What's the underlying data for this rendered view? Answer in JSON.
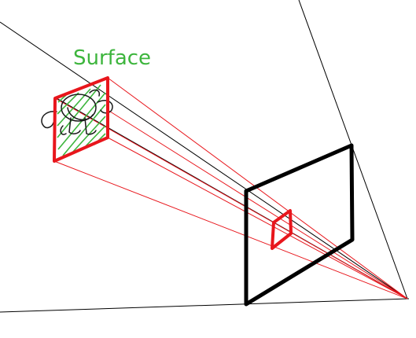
{
  "diagram": {
    "type": "projection-diagram",
    "surface_label": "Surface",
    "colors": {
      "label": "#3db53d",
      "hatch": "#3db53d",
      "surface_frame": "#e8161c",
      "projection_rays": "#e8161c",
      "image_patch": "#e8161c",
      "plane": "#000000",
      "guide_lines": "#000000",
      "object_sketch": "#1a1a1a",
      "background": "#ffffff"
    }
  }
}
